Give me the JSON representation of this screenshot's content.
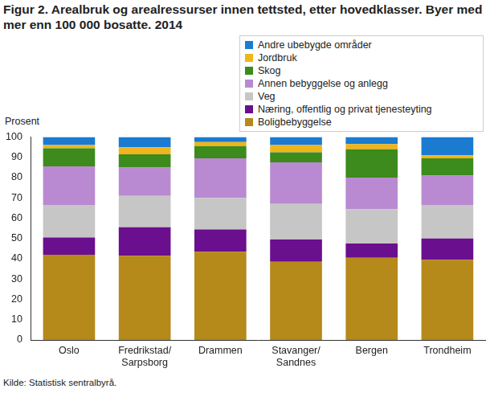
{
  "chart_data": {
    "type": "bar",
    "title": "Figur 2. Arealbruk og arealressurser innen tettsted, etter hovedklasser. Byer med mer enn 100 000 bosatte. 2014",
    "y_label": "Prosent",
    "source": "Kilde: Statistisk sentralbyrå.",
    "categories": [
      "Oslo",
      [
        "Fredrikstad/",
        "Sarpsborg"
      ],
      "Drammen",
      [
        "Stavanger/",
        "Sandnes"
      ],
      "Bergen",
      "Trondheim"
    ],
    "series": [
      {
        "name": "Boligbebyggelse",
        "color": "#b5891a",
        "values": [
          42,
          41.5,
          43.5,
          38.5,
          40.5,
          39.5
        ]
      },
      {
        "name": "Næring, offentlig og privat tjenesteyting",
        "color": "#6a0f8e",
        "values": [
          8.5,
          14,
          11,
          11,
          7,
          10.5
        ]
      },
      {
        "name": "Veg",
        "color": "#c6c6c6",
        "values": [
          16,
          15.5,
          15.5,
          17.5,
          17,
          16.5
        ]
      },
      {
        "name": "Annen bebyggelse og anlegg",
        "color": "#b98ad1",
        "values": [
          19,
          14,
          19.5,
          20.5,
          15.5,
          14.5
        ]
      },
      {
        "name": "Skog",
        "color": "#3c8b1c",
        "values": [
          9,
          6.5,
          6,
          5,
          14,
          8.5
        ]
      },
      {
        "name": "Jordbruk",
        "color": "#f0b41c",
        "values": [
          1.5,
          3.5,
          2,
          3.5,
          2.5,
          1.5
        ]
      },
      {
        "name": "Andre ubebygde områder",
        "color": "#1a7bd1",
        "values": [
          4,
          5,
          2.5,
          4,
          3.5,
          9
        ]
      }
    ],
    "stacked": true,
    "ylim": [
      0,
      100
    ],
    "yticks": [
      0,
      10,
      20,
      30,
      40,
      50,
      60,
      70,
      80,
      90,
      100
    ],
    "grid": false,
    "legend": "top-right"
  }
}
